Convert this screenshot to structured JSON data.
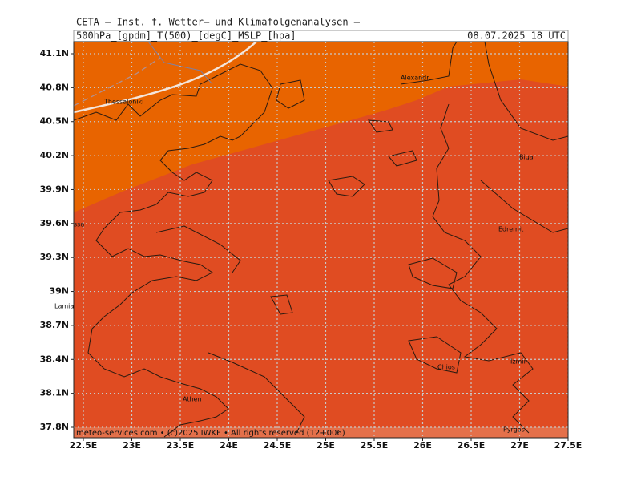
{
  "header": {
    "line1": "CETA – Inst. f. Wetter– und Klimafolgenanalysen –",
    "line2_left": "500hPa_[gpdm]_T(500)_[degC]_MSLP_[hpa]",
    "line2_right": "08.07.2025  18 UTC"
  },
  "map": {
    "lat_ticks": [
      {
        "value": 41.1,
        "label": "41.1N"
      },
      {
        "value": 40.8,
        "label": "40.8N"
      },
      {
        "value": 40.5,
        "label": "40.5N"
      },
      {
        "value": 40.2,
        "label": "40.2N"
      },
      {
        "value": 39.9,
        "label": "39.9N"
      },
      {
        "value": 39.6,
        "label": "39.6N"
      },
      {
        "value": 39.3,
        "label": "39.3N"
      },
      {
        "value": 39,
        "label": "39N"
      },
      {
        "value": 38.7,
        "label": "38.7N"
      },
      {
        "value": 38.4,
        "label": "38.4N"
      },
      {
        "value": 38.1,
        "label": "38.1N"
      },
      {
        "value": 37.8,
        "label": "37.8N"
      }
    ],
    "lon_ticks": [
      {
        "value": 22.5,
        "label": "22.5E"
      },
      {
        "value": 23,
        "label": "23E"
      },
      {
        "value": 23.5,
        "label": "23.5E"
      },
      {
        "value": 24,
        "label": "24E"
      },
      {
        "value": 24.5,
        "label": "24.5E"
      },
      {
        "value": 25,
        "label": "25E"
      },
      {
        "value": 25.5,
        "label": "25.5E"
      },
      {
        "value": 26,
        "label": "26E"
      },
      {
        "value": 26.5,
        "label": "26.5E"
      },
      {
        "value": 27,
        "label": "27E"
      },
      {
        "value": 27.5,
        "label": "27.5E"
      }
    ],
    "places": [
      "Thessaloniki",
      "Alexandr.",
      "Biga",
      "ssa",
      "Edremit",
      "Lamia",
      "Chios",
      "Izmir",
      "Athen",
      "Pyrgos"
    ]
  },
  "footer": "meteo-services.com • (c)2025 IWKF • All rights reserved (12+006)"
}
